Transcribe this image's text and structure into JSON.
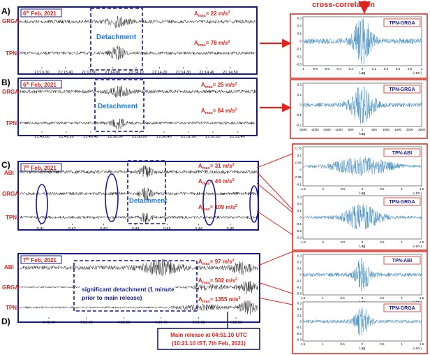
{
  "header": {
    "cross_correlation_label": "cross-correlation"
  },
  "colors": {
    "panel_border": "#1a1a8c",
    "accent_red": "#e0231c",
    "trace": "#3a3a3a",
    "cc_trace": "#1f77b4",
    "box_label": "#1a1a8c"
  },
  "panels": [
    {
      "id": "A",
      "letter": "A)",
      "date_prefix": "6",
      "date_sup": "th",
      "date_rest": " Feb, 2021",
      "stations": [
        "GRGA",
        "TPN"
      ],
      "amax": [
        {
          "base": "A",
          "sub": "max",
          "val": "= 22 m/s",
          "sup": "2"
        },
        {
          "base": "A",
          "sub": "max",
          "val": "= 78 m/s",
          "sup": "2"
        }
      ],
      "box_label": "Detachment",
      "x_ticks": [
        "21:13.30",
        "21:13.40",
        "21:13.50",
        "21:14.00",
        "21:14.10",
        "21:14.20",
        "21:14.30",
        "21:14.40",
        "21:14.50"
      ]
    },
    {
      "id": "B",
      "letter": "B)",
      "date_prefix": "6",
      "date_sup": "th",
      "date_rest": " Feb, 2021",
      "stations": [
        "GRGA",
        "TPN"
      ],
      "amax": [
        {
          "base": "A",
          "sub": "max",
          "val": "= 25 m/s",
          "sup": "2"
        },
        {
          "base": "A",
          "sub": "max",
          "val": "= 84 m/s",
          "sup": "2"
        }
      ],
      "box_label": "Detachment",
      "x_ticks": [
        "21:49.00",
        "21:49.20",
        "21:49.40",
        "21:50.00",
        "21:50.20",
        "21:50.40",
        "21:51.00",
        "21:51.20",
        "21:51.40"
      ]
    },
    {
      "id": "C",
      "letter": "C)",
      "date_prefix": "7",
      "date_sup": "th",
      "date_rest": " Feb, 2021",
      "stations": [
        "ABI",
        "GRGA",
        "TPN"
      ],
      "amax": [
        {
          "base": "A",
          "sub": "max",
          "val": "= 31 m/s",
          "sup": "2"
        },
        {
          "base": "A",
          "sub": "max",
          "val": "= 44 m/s",
          "sup": "2"
        },
        {
          "base": "A",
          "sub": "max",
          "val": "= 109 m/s",
          "sup": "2"
        }
      ],
      "box_label": "Detachment",
      "x_ticks": [
        "0:41",
        "0:42",
        "0:43",
        "0:44",
        "0:45",
        "0:44",
        "0:46"
      ]
    },
    {
      "id": "D",
      "letter": "D)",
      "date_prefix": "7",
      "date_sup": "th",
      "date_rest": " Feb, 2021",
      "stations": [
        "ABI",
        "GRGA",
        "TPN"
      ],
      "amax": [
        {
          "base": "A",
          "sub": "max",
          "val": "= 97 m/s",
          "sup": "2"
        },
        {
          "base": "A",
          "sub": "max",
          "val": "= 502 m/s",
          "sup": "2"
        },
        {
          "base": "A",
          "sub": "max",
          "val": "= 1355 m/s",
          "sup": "2"
        }
      ],
      "box_label_lines": [
        "significant detachment (1 minute",
        "prior to main release)"
      ],
      "x_ticks": [
        "4:49.40",
        "4:50.00",
        "4:50.20",
        "4:50.40",
        "4:51.00",
        "4:51.20"
      ],
      "release_lines": [
        "Main release at 04:51.10 UTC",
        "(10:21.10 IST, 7th Feb, 2021)"
      ]
    }
  ],
  "cc_plots": [
    {
      "label": "TPN-GRGA",
      "xlabel": "Lag",
      "exp": "(×10⁴)",
      "y_ticks": [
        "0.3",
        "0.2",
        "0.1",
        "0",
        "-0.1",
        "-0.2",
        "-0.3"
      ],
      "x_ticks": [
        "-1",
        "-0.8",
        "-0.6",
        "-0.4",
        "-0.2",
        "0",
        "0.2",
        "0.4",
        "0.6",
        "0.8",
        "1"
      ]
    },
    {
      "label": "TPN-GRGA",
      "xlabel": "Lag",
      "exp": "",
      "y_ticks": [
        "0.2",
        "0.1",
        "0",
        "-0.1",
        "-0.2"
      ],
      "x_ticks": [
        "-2500",
        "-2000",
        "-1500",
        "-1000",
        "-500",
        "0",
        "500",
        "1000",
        "1500",
        "2000",
        "2500"
      ]
    },
    {
      "label": "TPN-ABI",
      "xlabel": "Lag",
      "exp": "(×10⁴)",
      "y_ticks": [
        "0.15",
        "0.1",
        "0.05",
        "0",
        "-0.05",
        "-0.1"
      ],
      "x_ticks": [
        "-1.5",
        "-1",
        "-0.5",
        "0",
        "0.5",
        "1",
        "1.5"
      ]
    },
    {
      "label": "TPN-GRGA",
      "xlabel": "Lag",
      "exp": "(×10⁴)",
      "y_ticks": [
        "0.3",
        "0.2",
        "0.1",
        "0",
        "-0.1",
        "-0.2",
        "-0.3"
      ],
      "x_ticks": [
        "-1.5",
        "-1",
        "-0.5",
        "0",
        "0.5",
        "1",
        "1.5"
      ]
    },
    {
      "label": "TPN-ABI",
      "xlabel": "Lag",
      "exp": "(×10⁴)",
      "y_ticks": [
        "0.3",
        "0.2",
        "0.1",
        "0",
        "-0.1",
        "-0.2",
        "-0.3"
      ],
      "x_ticks": [
        "1.5",
        "1",
        "0.5",
        "0",
        "0.5",
        "1",
        "1.5"
      ]
    },
    {
      "label": "TPN-GRGA",
      "xlabel": "Lag",
      "exp": "(×10⁴)",
      "y_ticks": [
        "0.3",
        "0.2",
        "0.1",
        "0",
        "-0.1",
        "-0.2",
        "-0.3"
      ],
      "x_ticks": [
        "1.5",
        "1",
        "0.5",
        "0",
        "0.5",
        "1",
        "1.5"
      ]
    }
  ]
}
